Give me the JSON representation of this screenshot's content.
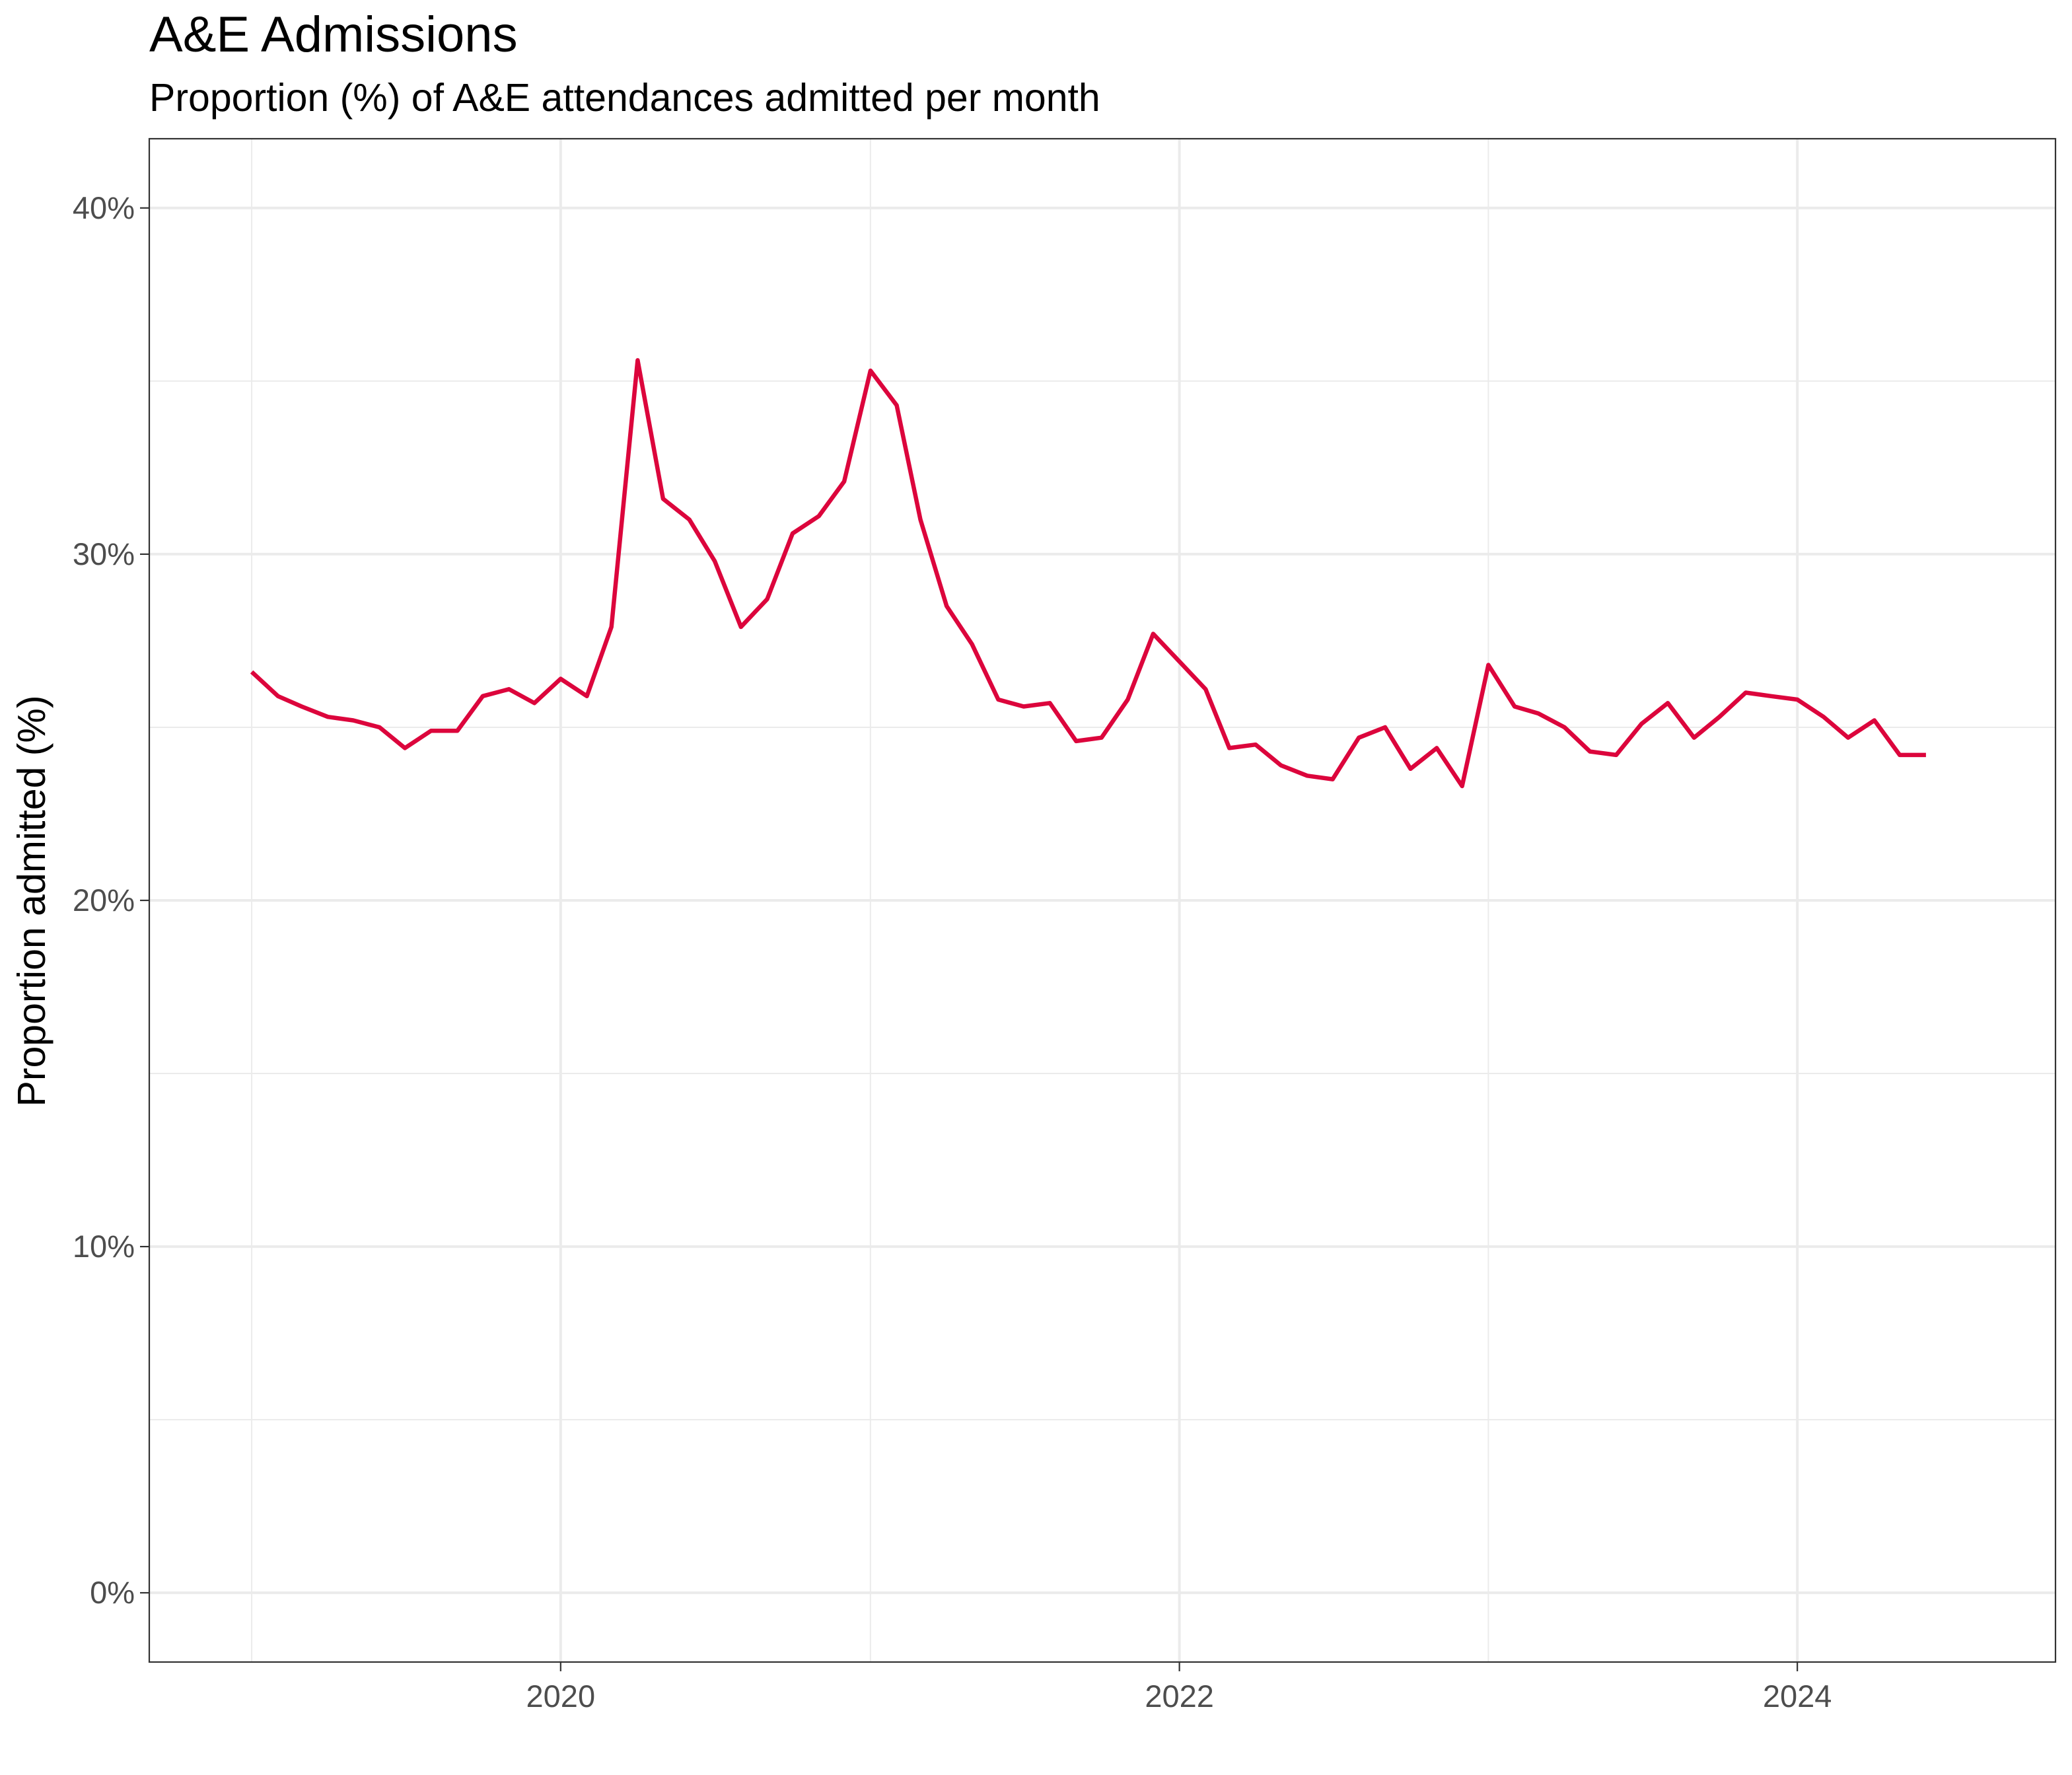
{
  "chart_data": {
    "type": "line",
    "title": "A&E Admissions",
    "subtitle": "Proportion (%) of A&E attendances admitted per month",
    "xlabel": "",
    "ylabel": "Proportion admitted (%)",
    "xlim": [
      "2018-09-02",
      "2024-11-01"
    ],
    "ylim": [
      -2,
      42
    ],
    "x_ticks": [
      {
        "date": "2020-01-01",
        "label": "2020"
      },
      {
        "date": "2022-01-01",
        "label": "2022"
      },
      {
        "date": "2024-01-01",
        "label": "2024"
      }
    ],
    "x_minor_dates": [
      "2019-01-01",
      "2021-01-01",
      "2023-01-01"
    ],
    "y_ticks": [
      {
        "value": 0,
        "label": "0%"
      },
      {
        "value": 10,
        "label": "10%"
      },
      {
        "value": 20,
        "label": "20%"
      },
      {
        "value": 30,
        "label": "30%"
      },
      {
        "value": 40,
        "label": "40%"
      }
    ],
    "y_minor": [
      5,
      15,
      25,
      35
    ],
    "grid": true,
    "series": [
      {
        "color": "#dc053c",
        "x": [
          "2019-01-01",
          "2019-02-01",
          "2019-03-01",
          "2019-04-01",
          "2019-05-01",
          "2019-06-01",
          "2019-07-01",
          "2019-08-01",
          "2019-09-01",
          "2019-10-01",
          "2019-11-01",
          "2019-12-01",
          "2020-01-01",
          "2020-02-01",
          "2020-03-01",
          "2020-04-01",
          "2020-05-01",
          "2020-06-01",
          "2020-07-01",
          "2020-08-01",
          "2020-09-01",
          "2020-10-01",
          "2020-11-01",
          "2020-12-01",
          "2021-01-01",
          "2021-02-01",
          "2021-03-01",
          "2021-04-01",
          "2021-05-01",
          "2021-06-01",
          "2021-07-01",
          "2021-08-01",
          "2021-09-01",
          "2021-10-01",
          "2021-11-01",
          "2021-12-01",
          "2022-01-01",
          "2022-02-01",
          "2022-03-01",
          "2022-04-01",
          "2022-05-01",
          "2022-06-01",
          "2022-07-01",
          "2022-08-01",
          "2022-09-01",
          "2022-10-01",
          "2022-11-01",
          "2022-12-01",
          "2023-01-01",
          "2023-02-01",
          "2023-03-01",
          "2023-04-01",
          "2023-05-01",
          "2023-06-01",
          "2023-07-01",
          "2023-08-01",
          "2023-09-01",
          "2023-10-01",
          "2023-11-01",
          "2023-12-01",
          "2024-01-01",
          "2024-02-01",
          "2024-03-01",
          "2024-04-01",
          "2024-05-01",
          "2024-06-01"
        ],
        "y": [
          26.6,
          25.9,
          25.6,
          25.3,
          25.2,
          25.0,
          24.4,
          24.9,
          24.9,
          25.9,
          26.1,
          25.7,
          26.4,
          25.9,
          27.9,
          35.6,
          31.6,
          31.0,
          29.8,
          27.9,
          28.7,
          30.6,
          31.1,
          32.1,
          35.3,
          34.3,
          31.0,
          28.5,
          27.4,
          25.8,
          25.6,
          25.7,
          24.6,
          24.7,
          25.8,
          27.7,
          26.9,
          26.1,
          24.4,
          24.5,
          23.9,
          23.6,
          23.5,
          24.7,
          25.0,
          23.8,
          24.4,
          23.3,
          26.8,
          25.6,
          25.4,
          25.0,
          24.3,
          24.2,
          25.1,
          25.7,
          24.7,
          25.3,
          26.0,
          25.9,
          25.8,
          25.3,
          24.7,
          25.2,
          24.2,
          24.2
        ]
      }
    ]
  }
}
